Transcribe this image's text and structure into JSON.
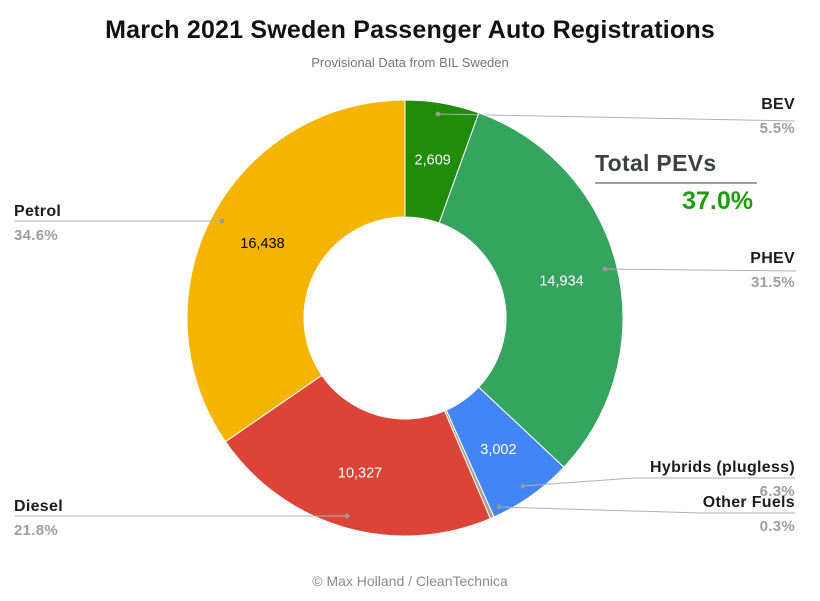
{
  "title": "March 2021 Sweden Passenger Auto Registrations",
  "subtitle": "Provisional Data from BIL Sweden",
  "footer": "© Max Holland / CleanTechnica",
  "total_pevs": {
    "label": "Total PEVs",
    "value": "37.0%",
    "color": "#1f9c0c"
  },
  "chart_data": {
    "type": "pie",
    "donut": true,
    "start_angle": "12 o'clock",
    "direction": "clockwise",
    "title": "March 2021 Sweden Passenger Auto Registrations",
    "slices": [
      {
        "label": "BEV",
        "value": 2609,
        "value_label": "2,609",
        "pct": 5.5,
        "pct_label": "5.5%",
        "color": "#1f8c0a",
        "value_text_color": "#ffffff"
      },
      {
        "label": "PHEV",
        "value": 14934,
        "value_label": "14,934",
        "pct": 31.5,
        "pct_label": "31.5%",
        "color": "#34a45e",
        "value_text_color": "#ffffff"
      },
      {
        "label": "Hybrids (plugless)",
        "value": 3002,
        "value_label": "3,002",
        "pct": 6.3,
        "pct_label": "6.3%",
        "color": "#4285f4",
        "value_text_color": "#ffffff"
      },
      {
        "label": "Other Fuels",
        "value_label": "",
        "pct": 0.3,
        "pct_label": "0.3%",
        "color": "#aba094",
        "value_text_color": "#ffffff"
      },
      {
        "label": "Diesel",
        "value": 10327,
        "value_label": "10,327",
        "pct": 21.8,
        "pct_label": "21.8%",
        "color": "#dc4437",
        "value_text_color": "#ffffff"
      },
      {
        "label": "Petrol",
        "value": 16438,
        "value_label": "16,438",
        "pct": 34.6,
        "pct_label": "34.6%",
        "color": "#f4b400",
        "value_text_color": "#000000"
      }
    ]
  }
}
